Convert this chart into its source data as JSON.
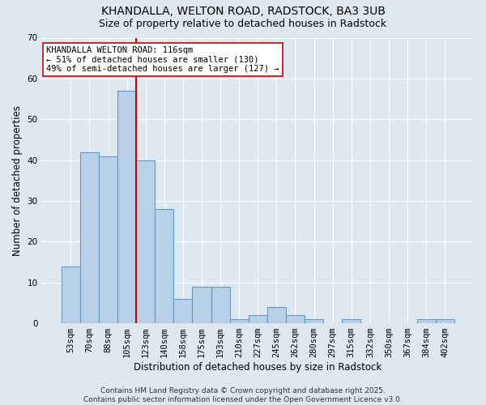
{
  "title1": "KHANDALLA, WELTON ROAD, RADSTOCK, BA3 3UB",
  "title2": "Size of property relative to detached houses in Radstock",
  "xlabel": "Distribution of detached houses by size in Radstock",
  "ylabel": "Number of detached properties",
  "categories": [
    "53sqm",
    "70sqm",
    "88sqm",
    "105sqm",
    "123sqm",
    "140sqm",
    "158sqm",
    "175sqm",
    "193sqm",
    "210sqm",
    "227sqm",
    "245sqm",
    "262sqm",
    "280sqm",
    "297sqm",
    "315sqm",
    "332sqm",
    "350sqm",
    "367sqm",
    "384sqm",
    "402sqm"
  ],
  "values": [
    14,
    42,
    41,
    57,
    40,
    28,
    6,
    9,
    9,
    1,
    2,
    4,
    2,
    1,
    0,
    1,
    0,
    0,
    0,
    1,
    1
  ],
  "bar_color": "#b8d0e8",
  "bar_edge_color": "#6699cc",
  "red_line_color": "#cc0000",
  "annotation_text": "KHANDALLA WELTON ROAD: 116sqm\n← 51% of detached houses are smaller (130)\n49% of semi-detached houses are larger (127) →",
  "annotation_box_color": "white",
  "annotation_box_edge": "#cc0000",
  "ylim": [
    0,
    70
  ],
  "yticks": [
    0,
    10,
    20,
    30,
    40,
    50,
    60,
    70
  ],
  "background_color": "#dde8f0",
  "footer_text": "Contains HM Land Registry data © Crown copyright and database right 2025.\nContains public sector information licensed under the Open Government Licence v3.0.",
  "title_fontsize": 10,
  "subtitle_fontsize": 9,
  "axis_label_fontsize": 8.5,
  "tick_fontsize": 7.5,
  "footer_fontsize": 6.5
}
